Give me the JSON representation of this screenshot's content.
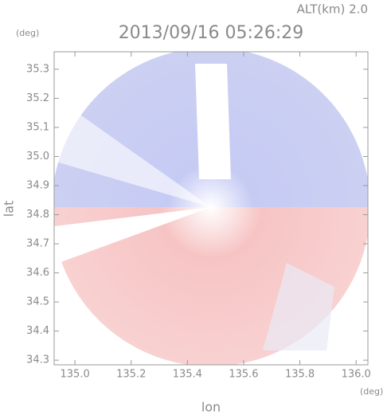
{
  "chart_data": {
    "type": "radar-image",
    "title": "2013/09/16 05:26:29",
    "annotation": "ALT(km) 2.0",
    "x_label": "lon",
    "y_label": "lat",
    "x_unit": "(deg)",
    "y_unit": "(deg)",
    "xlim": [
      134.926,
      136.042
    ],
    "ylim": [
      34.284,
      35.36
    ],
    "xticks": [
      {
        "value": 135,
        "label": "135.0"
      },
      135.2,
      135.4,
      135.6,
      135.8,
      {
        "value": 136,
        "label": "136.0"
      }
    ],
    "yticks": [
      34.3,
      34.4,
      34.5,
      34.6,
      34.7,
      34.8,
      34.9,
      {
        "value": 35,
        "label": "35.0"
      },
      35.1,
      35.2,
      35.3
    ]
  }
}
